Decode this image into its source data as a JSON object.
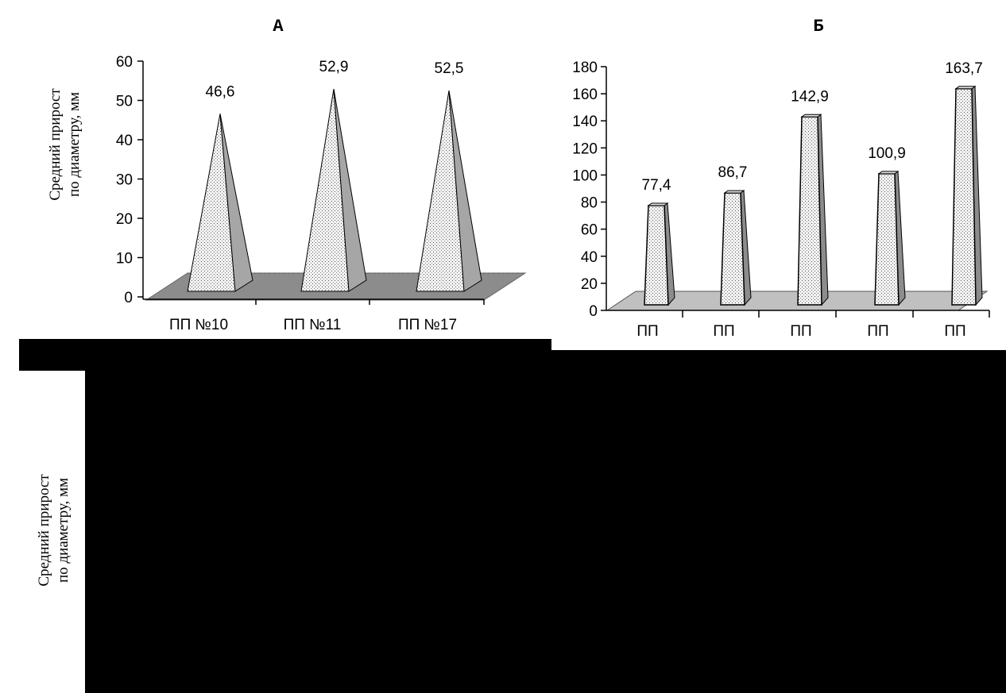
{
  "y_label_lines": [
    "Средний прирост",
    "по диаметру, мм"
  ],
  "chart_data": [
    {
      "type": "bar",
      "title": "А",
      "shape": "pyramid",
      "categories": [
        "ПП  №10",
        "ПП  №11",
        "ПП  №17"
      ],
      "values": [
        46.6,
        52.9,
        52.5
      ],
      "data_labels": [
        "46,6",
        "52,9",
        "52,5"
      ],
      "ylim": [
        0,
        60
      ],
      "yticks": [
        0,
        10,
        20,
        30,
        40,
        50,
        60
      ],
      "ylabel": "Средний прирост по диаметру, мм",
      "fill": "#f2f2f2",
      "side_color": "#a6a6a6",
      "floor_color": "#8c8c8c"
    },
    {
      "type": "bar",
      "title": "Б",
      "shape": "truncated-pyramid",
      "categories": [
        "ПП",
        "ПП",
        "ПП",
        "ПП",
        "ПП"
      ],
      "values": [
        77.4,
        86.7,
        142.9,
        100.9,
        163.7
      ],
      "data_labels": [
        "77,4",
        "86,7",
        "142,9",
        "100,9",
        "163,7"
      ],
      "ylim": [
        0,
        180
      ],
      "yticks": [
        0,
        20,
        40,
        60,
        80,
        100,
        120,
        140,
        160,
        180
      ],
      "fill": "#f2f2f2",
      "side_color": "#8c8c8c",
      "floor_color": "#c0c0c0"
    }
  ]
}
